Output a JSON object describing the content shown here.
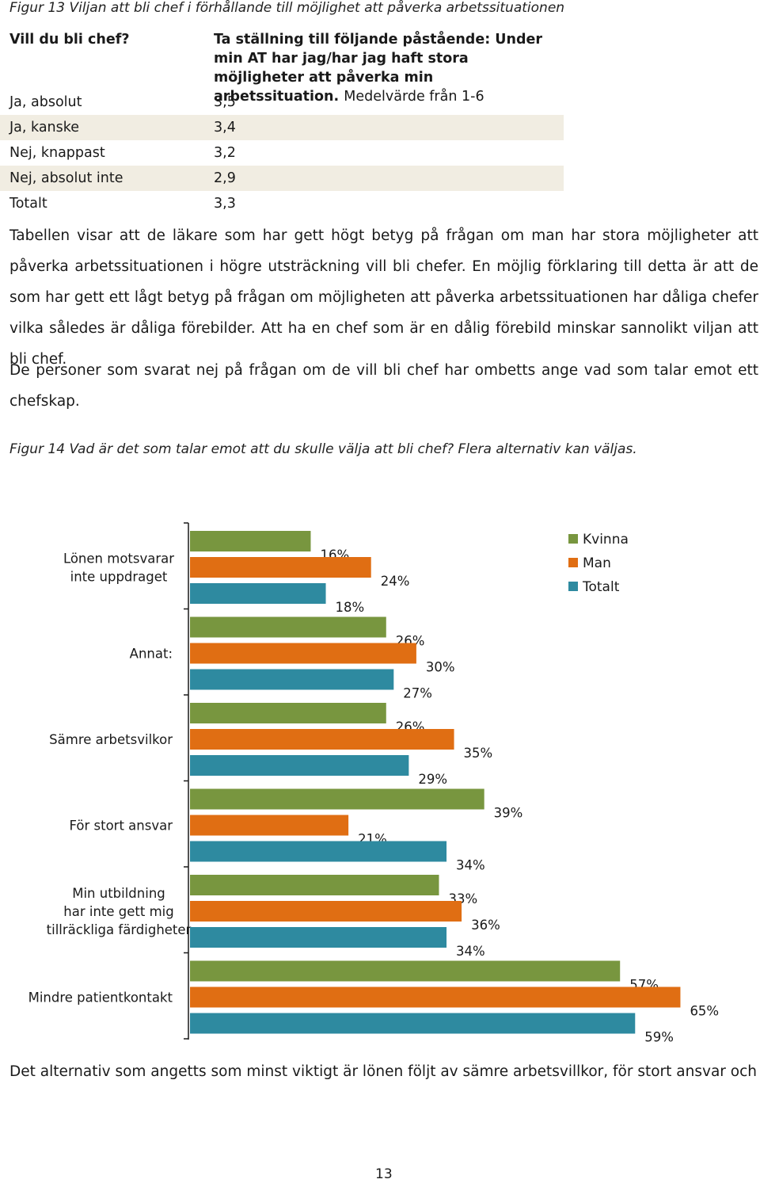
{
  "figure13": {
    "caption": "Figur 13 Viljan att bli chef i förhållande till möjlighet att påverka arbetssituationen",
    "col1_header": "Vill du bli chef?",
    "col2_header_bold": "Ta ställning till följande påstående: Under min AT har jag/har jag haft stora möjligheter att påverka min arbetssituation.",
    "col2_header_normal": "Medelvärde från 1-6",
    "rows": [
      {
        "label": "Ja, absolut",
        "value": "3,5"
      },
      {
        "label": "Ja, kanske",
        "value": "3,4"
      },
      {
        "label": "Nej, knappast",
        "value": "3,2"
      },
      {
        "label": "Nej, absolut inte",
        "value": "2,9"
      },
      {
        "label": "Totalt",
        "value": "3,3"
      }
    ]
  },
  "paragraphs": [
    "Tabellen visar att de läkare som har gett högt betyg på frågan om man har stora möjligheter att påverka arbetssituationen i högre utsträckning vill bli chefer. En möjlig förklaring till detta är att de som har gett ett lågt betyg på frågan om möjligheten att påverka arbetssituationen har dåliga chefer vilka således är dåliga förebilder. Att ha en chef som är en dålig förebild minskar sannolikt viljan att bli chef.",
    "De personer som svarat nej på frågan om de vill bli chef har ombetts ange vad som talar emot ett chefskap."
  ],
  "figure14_caption": "Figur 14 Vad är det som talar emot att du skulle välja att bli chef? Flera alternativ kan väljas.",
  "chart_data": {
    "type": "bar",
    "orientation": "horizontal",
    "categories": [
      "Lönen motsvarar inte uppdraget",
      "Annat:",
      "Sämre arbetsvilkor",
      "För stort ansvar",
      "Min utbildning har inte gett mig tillräckliga färdigheter",
      "Mindre patientkontakt"
    ],
    "category_lines": [
      [
        "Lönen motsvarar",
        "inte uppdraget"
      ],
      [
        "Annat:"
      ],
      [
        "Sämre arbetsvilkor"
      ],
      [
        "För stort ansvar"
      ],
      [
        "Min utbildning",
        "har inte gett mig",
        "tillräckliga färdigheter"
      ],
      [
        "Mindre patientkontakt"
      ]
    ],
    "series": [
      {
        "name": "Kvinna",
        "color": "#78963f",
        "values": [
          16,
          26,
          26,
          39,
          33,
          57
        ]
      },
      {
        "name": "Man",
        "color": "#e06e13",
        "values": [
          24,
          30,
          35,
          21,
          36,
          65
        ]
      },
      {
        "name": "Totalt",
        "color": "#2e8aa0",
        "values": [
          18,
          27,
          29,
          34,
          34,
          59
        ]
      }
    ],
    "value_suffix": "%",
    "xlim": [
      0,
      70
    ],
    "legend_position": "top-right",
    "grid": false
  },
  "footer_text": "Det alternativ som angetts som minst viktigt är lönen följt av sämre arbetsvillkor, för stort ansvar och att",
  "page_number": "13"
}
